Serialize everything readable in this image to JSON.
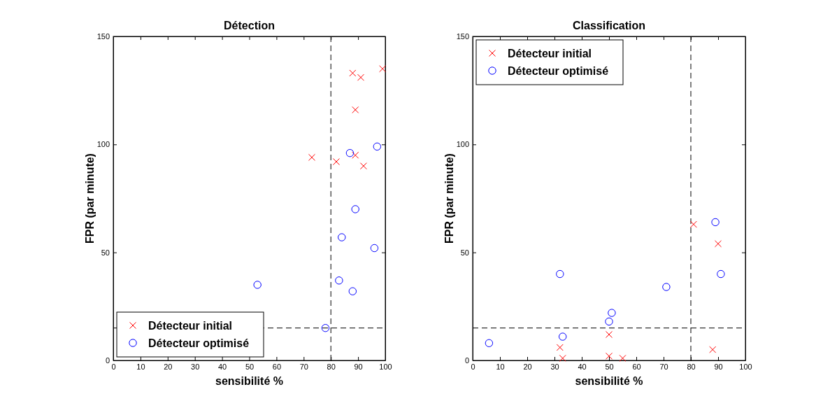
{
  "chart_data": [
    {
      "type": "scatter",
      "title": "Détection",
      "xlabel": "sensibilité %",
      "ylabel": "FPR (par minute)",
      "xlim": [
        0,
        100
      ],
      "ylim": [
        0,
        150
      ],
      "xticks": [
        0,
        10,
        20,
        30,
        40,
        50,
        60,
        70,
        80,
        90,
        100
      ],
      "yticks": [
        0,
        50,
        100,
        150
      ],
      "legend": "bottom left",
      "grid": false,
      "series": [
        {
          "name": "Détecteur initial",
          "color": "#ff0000",
          "marker": "cross",
          "x": [
            73,
            82,
            88,
            89,
            89,
            91,
            92,
            99
          ],
          "values": [
            94,
            92,
            133,
            116,
            95,
            131,
            90,
            135
          ]
        },
        {
          "name": "Détecteur optimisé",
          "color": "#0000ff",
          "marker": "circle",
          "x": [
            53,
            78,
            83,
            84,
            87,
            88,
            89,
            96,
            97
          ],
          "values": [
            35,
            15,
            37,
            57,
            96,
            32,
            70,
            52,
            99
          ]
        }
      ],
      "ref_lines": [
        {
          "axis": "x",
          "value": 80,
          "line_style": "dashed"
        },
        {
          "axis": "y",
          "value": 15,
          "line_style": "dashed"
        }
      ]
    },
    {
      "type": "scatter",
      "title": "Classification",
      "xlabel": "sensibilité %",
      "ylabel": "FPR (par minute)",
      "xlim": [
        0,
        100
      ],
      "ylim": [
        0,
        150
      ],
      "xticks": [
        0,
        10,
        20,
        30,
        40,
        50,
        60,
        70,
        80,
        90,
        100
      ],
      "yticks": [
        0,
        50,
        100,
        150
      ],
      "legend": "top left",
      "grid": false,
      "series": [
        {
          "name": "Détecteur initial",
          "color": "#ff0000",
          "marker": "cross",
          "x": [
            32,
            33,
            50,
            50,
            55,
            81,
            88,
            90
          ],
          "values": [
            6,
            1,
            12,
            2,
            1,
            63,
            5,
            54
          ]
        },
        {
          "name": "Détecteur optimisé",
          "color": "#0000ff",
          "marker": "circle",
          "x": [
            6,
            32,
            33,
            50,
            51,
            71,
            89,
            91
          ],
          "values": [
            8,
            40,
            11,
            18,
            22,
            34,
            64,
            40
          ]
        }
      ],
      "ref_lines": [
        {
          "axis": "x",
          "value": 80,
          "line_style": "dashed"
        },
        {
          "axis": "y",
          "value": 15,
          "line_style": "dashed"
        }
      ]
    }
  ]
}
